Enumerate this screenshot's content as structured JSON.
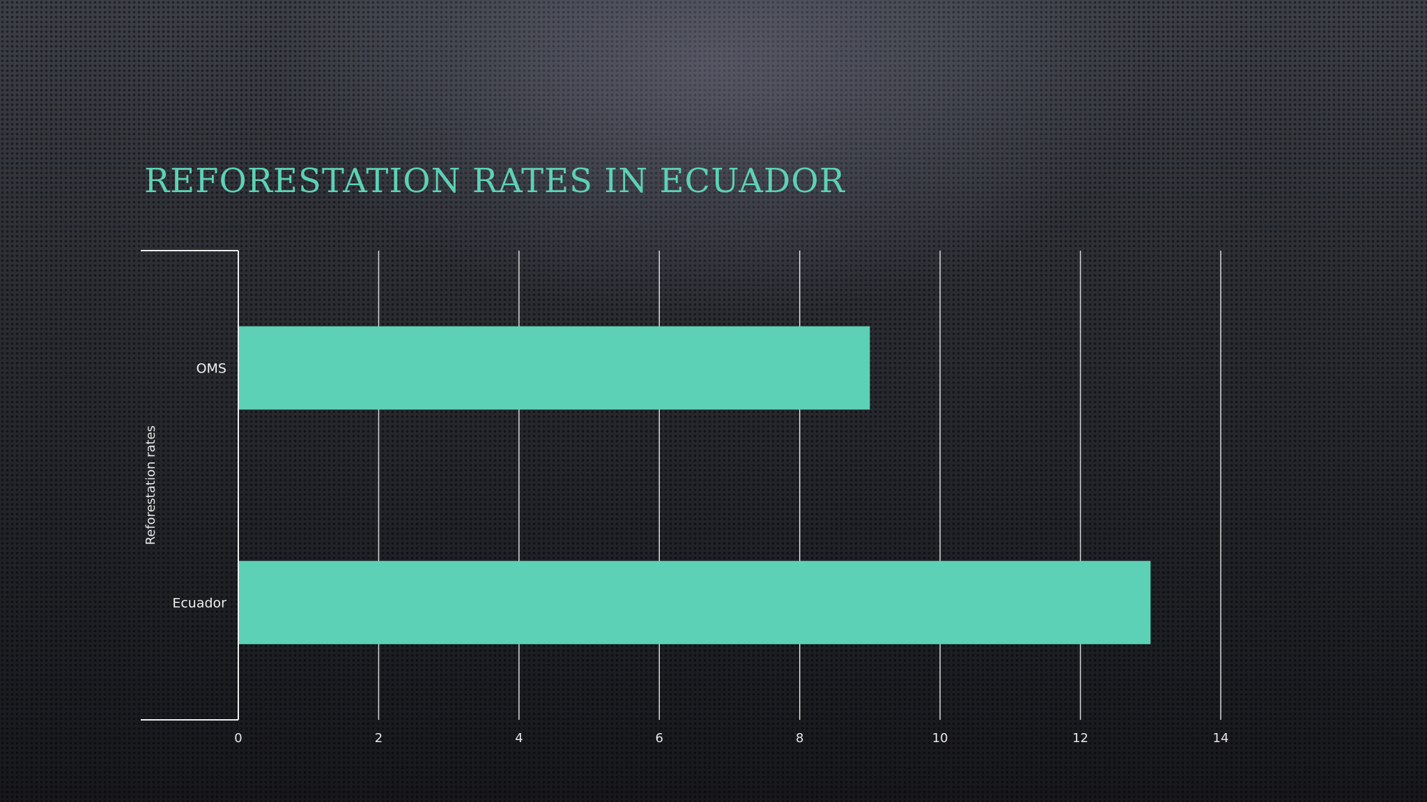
{
  "chart_data": {
    "type": "bar",
    "orientation": "horizontal",
    "title": "Reforestation rates in Ecuador",
    "ylabel": "Reforestation rates",
    "xlabel": "",
    "categories": [
      "OMS",
      "Ecuador"
    ],
    "values": [
      9,
      13
    ],
    "xlim": [
      0,
      14
    ],
    "xticks": [
      "0",
      "2",
      "4",
      "6",
      "8",
      "10",
      "12",
      "14"
    ],
    "grid": true,
    "legend": "none",
    "bar_color": "#5dd1b6"
  }
}
